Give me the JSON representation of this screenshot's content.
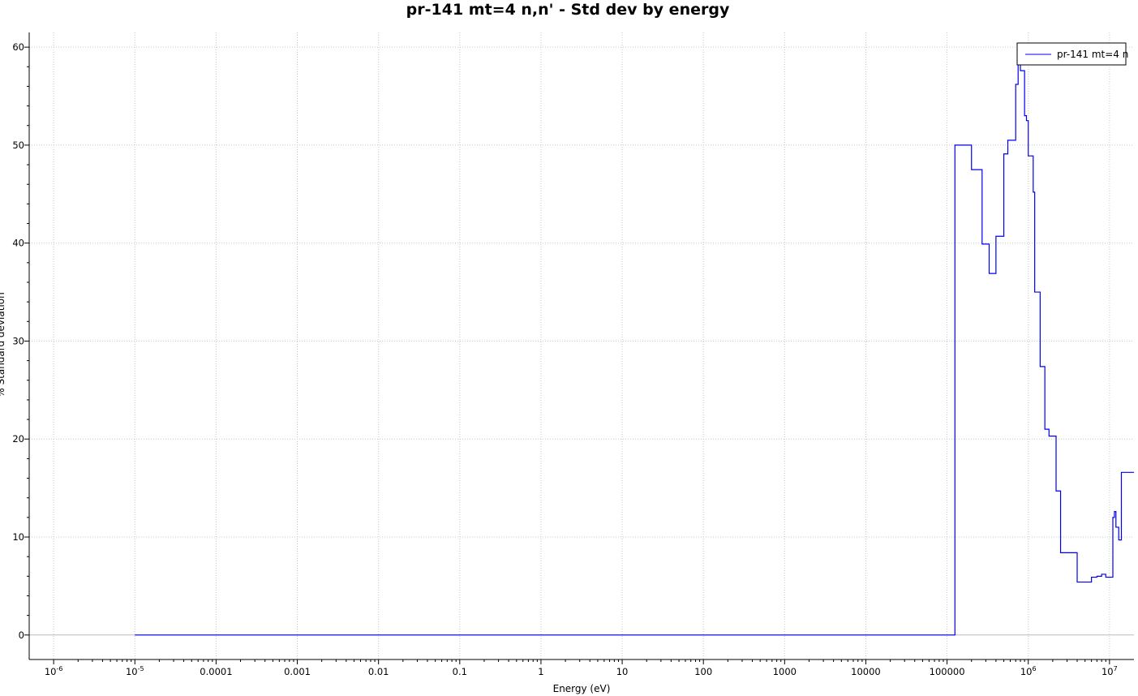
{
  "chart_data": {
    "type": "line",
    "title": "pr-141 mt=4 n,n' - Std dev by energy",
    "xlabel": "Energy (eV)",
    "ylabel": "% Standard deviation",
    "x_scale": "log",
    "xlim": [
      5e-07,
      20000000.0
    ],
    "ylim": [
      -2.5,
      61.5
    ],
    "grid": true,
    "legend_position": "top-right",
    "colors": {
      "series": "#0000ee",
      "zero_line": "#bbbbbb",
      "grid": "#c8c8c8"
    },
    "x_ticks": [
      {
        "value": 1e-06,
        "base": "10",
        "exp": "-6"
      },
      {
        "value": 1e-05,
        "base": "10",
        "exp": "-5"
      },
      {
        "value": 0.0001,
        "label": "0.0001"
      },
      {
        "value": 0.001,
        "label": "0.001"
      },
      {
        "value": 0.01,
        "label": "0.01"
      },
      {
        "value": 0.1,
        "label": "0.1"
      },
      {
        "value": 1,
        "label": "1"
      },
      {
        "value": 10,
        "label": "10"
      },
      {
        "value": 100,
        "label": "100"
      },
      {
        "value": 1000,
        "label": "1000"
      },
      {
        "value": 10000,
        "label": "10000"
      },
      {
        "value": 100000,
        "label": "100000"
      },
      {
        "value": 1000000.0,
        "base": "10",
        "exp": "6"
      },
      {
        "value": 10000000.0,
        "base": "10",
        "exp": "7"
      }
    ],
    "y_ticks": [
      0,
      10,
      20,
      30,
      40,
      50,
      60
    ],
    "series": [
      {
        "name": "pr-141 mt=4 n",
        "step": true,
        "x": [
          1e-05,
          125000,
          200000,
          270000,
          330000,
          400000,
          500000,
          560000,
          600000,
          700000,
          750000,
          800000,
          900000,
          950000,
          1000000,
          1100000,
          1150000,
          1200000,
          1400000,
          1600000,
          1800000,
          2200000,
          2500000,
          3000000,
          4000000,
          5000000,
          6000000,
          7000000,
          8000000,
          9000000,
          11000000,
          11500000,
          12000000,
          13000000,
          14000000,
          15000000,
          17000000,
          18000000,
          20000000
        ],
        "y": [
          0,
          50,
          47.5,
          39.9,
          36.9,
          40.7,
          49.1,
          50.5,
          50.5,
          56.2,
          58.6,
          57.6,
          53,
          52.5,
          48.9,
          48.9,
          45.2,
          35,
          27.4,
          21,
          20.3,
          14.7,
          8.4,
          8.4,
          5.4,
          5.4,
          5.9,
          6,
          6.2,
          5.9,
          12,
          12.6,
          11,
          9.7,
          16.6,
          16.6,
          16.6,
          16.6,
          16.6
        ]
      }
    ]
  }
}
